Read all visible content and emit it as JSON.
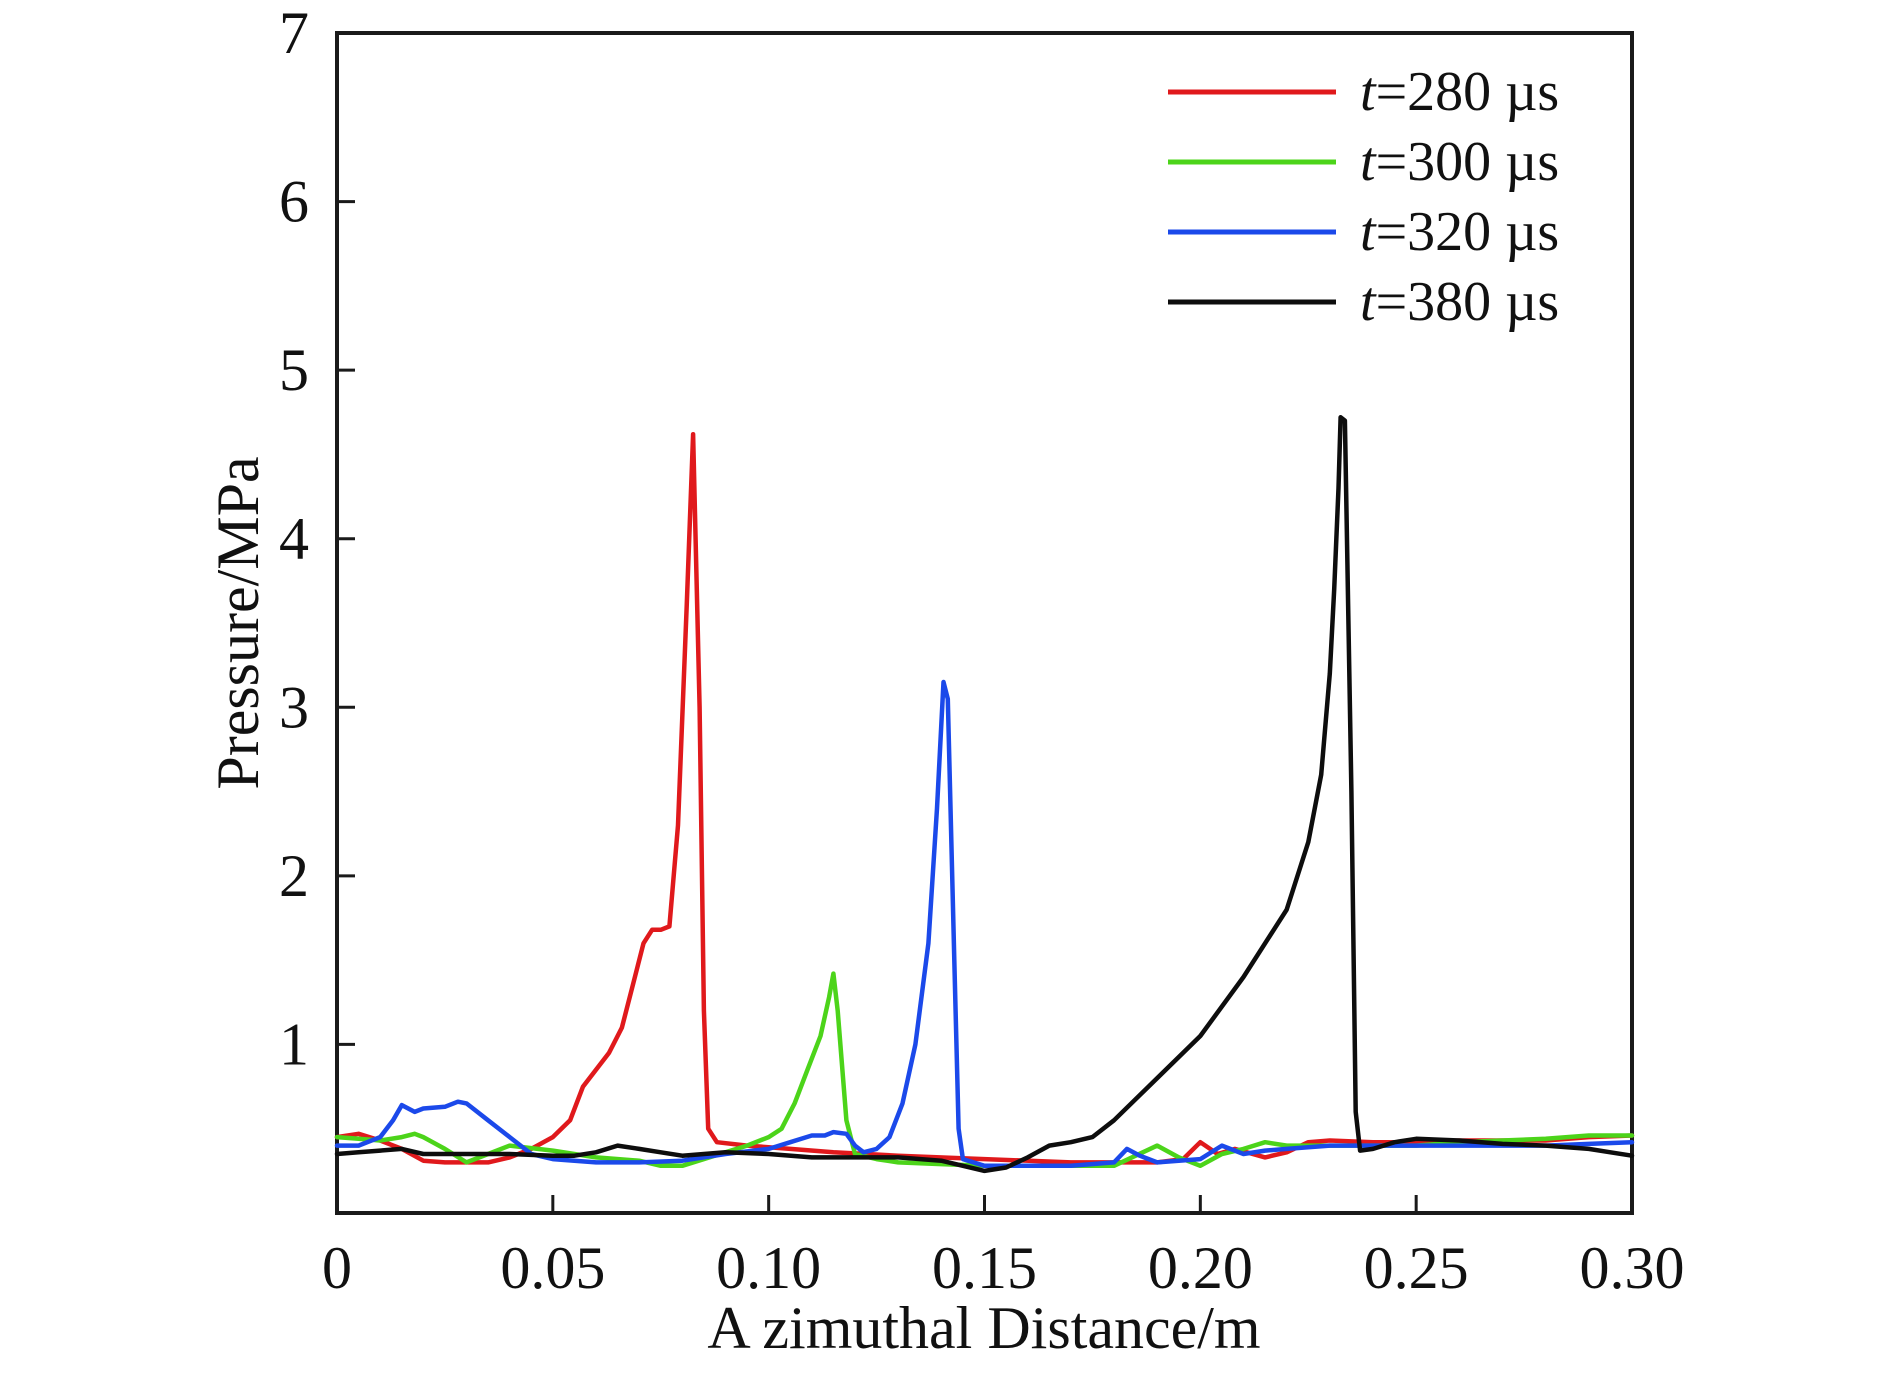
{
  "chart_data": {
    "type": "line",
    "xlabel": "A zimuthal Distance/m",
    "ylabel": "Pressure/MPa",
    "xlim": [
      0,
      0.3
    ],
    "ylim": [
      0,
      7
    ],
    "x_ticks": [
      {
        "value": 0,
        "label": "0"
      },
      {
        "value": 0.05,
        "label": "0.05"
      },
      {
        "value": 0.1,
        "label": "0.10"
      },
      {
        "value": 0.15,
        "label": "0.15"
      },
      {
        "value": 0.2,
        "label": "0.20"
      },
      {
        "value": 0.25,
        "label": "0.25"
      },
      {
        "value": 0.3,
        "label": "0.30"
      }
    ],
    "y_ticks": [
      {
        "value": 1,
        "label": "1"
      },
      {
        "value": 2,
        "label": "2"
      },
      {
        "value": 3,
        "label": "3"
      },
      {
        "value": 4,
        "label": "4"
      },
      {
        "value": 5,
        "label": "5"
      },
      {
        "value": 6,
        "label": "6"
      },
      {
        "value": 7,
        "label": "7"
      }
    ],
    "grid": false,
    "legend_position": "top-right",
    "series": [
      {
        "name": "t=280 µs",
        "name_italic": "t",
        "name_rest": "=280 µs",
        "color": "#e0191c",
        "points": [
          [
            0,
            0.45
          ],
          [
            0.005,
            0.47
          ],
          [
            0.01,
            0.43
          ],
          [
            0.015,
            0.38
          ],
          [
            0.02,
            0.31
          ],
          [
            0.025,
            0.3
          ],
          [
            0.03,
            0.3
          ],
          [
            0.035,
            0.3
          ],
          [
            0.04,
            0.33
          ],
          [
            0.045,
            0.38
          ],
          [
            0.05,
            0.45
          ],
          [
            0.054,
            0.55
          ],
          [
            0.057,
            0.75
          ],
          [
            0.06,
            0.85
          ],
          [
            0.063,
            0.95
          ],
          [
            0.066,
            1.1
          ],
          [
            0.069,
            1.4
          ],
          [
            0.071,
            1.6
          ],
          [
            0.073,
            1.68
          ],
          [
            0.075,
            1.68
          ],
          [
            0.077,
            1.7
          ],
          [
            0.079,
            2.3
          ],
          [
            0.081,
            3.6
          ],
          [
            0.0825,
            4.62
          ],
          [
            0.084,
            3.0
          ],
          [
            0.085,
            1.2
          ],
          [
            0.086,
            0.5
          ],
          [
            0.088,
            0.42
          ],
          [
            0.095,
            0.4
          ],
          [
            0.105,
            0.38
          ],
          [
            0.115,
            0.36
          ],
          [
            0.13,
            0.34
          ],
          [
            0.15,
            0.32
          ],
          [
            0.17,
            0.3
          ],
          [
            0.19,
            0.3
          ],
          [
            0.196,
            0.32
          ],
          [
            0.2,
            0.42
          ],
          [
            0.204,
            0.35
          ],
          [
            0.208,
            0.38
          ],
          [
            0.215,
            0.33
          ],
          [
            0.22,
            0.36
          ],
          [
            0.225,
            0.42
          ],
          [
            0.23,
            0.43
          ],
          [
            0.24,
            0.42
          ],
          [
            0.25,
            0.42
          ],
          [
            0.26,
            0.43
          ],
          [
            0.27,
            0.43
          ],
          [
            0.28,
            0.43
          ],
          [
            0.29,
            0.45
          ],
          [
            0.3,
            0.46
          ]
        ]
      },
      {
        "name": "t=300 µs",
        "name_italic": "t",
        "name_rest": "=300 µs",
        "color": "#4cd41a",
        "points": [
          [
            0,
            0.45
          ],
          [
            0.005,
            0.44
          ],
          [
            0.01,
            0.43
          ],
          [
            0.015,
            0.45
          ],
          [
            0.018,
            0.47
          ],
          [
            0.02,
            0.45
          ],
          [
            0.025,
            0.38
          ],
          [
            0.03,
            0.3
          ],
          [
            0.035,
            0.35
          ],
          [
            0.04,
            0.4
          ],
          [
            0.05,
            0.37
          ],
          [
            0.06,
            0.33
          ],
          [
            0.07,
            0.31
          ],
          [
            0.075,
            0.28
          ],
          [
            0.08,
            0.28
          ],
          [
            0.085,
            0.32
          ],
          [
            0.09,
            0.36
          ],
          [
            0.095,
            0.4
          ],
          [
            0.1,
            0.45
          ],
          [
            0.103,
            0.5
          ],
          [
            0.106,
            0.65
          ],
          [
            0.109,
            0.85
          ],
          [
            0.112,
            1.05
          ],
          [
            0.114,
            1.28
          ],
          [
            0.115,
            1.42
          ],
          [
            0.116,
            1.2
          ],
          [
            0.118,
            0.55
          ],
          [
            0.12,
            0.35
          ],
          [
            0.125,
            0.32
          ],
          [
            0.13,
            0.3
          ],
          [
            0.14,
            0.29
          ],
          [
            0.15,
            0.28
          ],
          [
            0.16,
            0.28
          ],
          [
            0.17,
            0.28
          ],
          [
            0.18,
            0.28
          ],
          [
            0.19,
            0.4
          ],
          [
            0.195,
            0.33
          ],
          [
            0.2,
            0.28
          ],
          [
            0.205,
            0.35
          ],
          [
            0.21,
            0.38
          ],
          [
            0.215,
            0.42
          ],
          [
            0.22,
            0.4
          ],
          [
            0.23,
            0.4
          ],
          [
            0.24,
            0.4
          ],
          [
            0.25,
            0.4
          ],
          [
            0.26,
            0.42
          ],
          [
            0.27,
            0.43
          ],
          [
            0.28,
            0.44
          ],
          [
            0.29,
            0.46
          ],
          [
            0.3,
            0.46
          ]
        ]
      },
      {
        "name": "t=320 µs",
        "name_italic": "t",
        "name_rest": "=320 µs",
        "color": "#1b49ea",
        "points": [
          [
            0,
            0.4
          ],
          [
            0.005,
            0.4
          ],
          [
            0.01,
            0.45
          ],
          [
            0.013,
            0.55
          ],
          [
            0.015,
            0.64
          ],
          [
            0.018,
            0.6
          ],
          [
            0.02,
            0.62
          ],
          [
            0.025,
            0.63
          ],
          [
            0.028,
            0.66
          ],
          [
            0.03,
            0.65
          ],
          [
            0.035,
            0.55
          ],
          [
            0.04,
            0.45
          ],
          [
            0.045,
            0.35
          ],
          [
            0.05,
            0.32
          ],
          [
            0.06,
            0.3
          ],
          [
            0.07,
            0.3
          ],
          [
            0.08,
            0.31
          ],
          [
            0.09,
            0.35
          ],
          [
            0.1,
            0.38
          ],
          [
            0.105,
            0.42
          ],
          [
            0.11,
            0.46
          ],
          [
            0.113,
            0.46
          ],
          [
            0.115,
            0.48
          ],
          [
            0.118,
            0.47
          ],
          [
            0.12,
            0.4
          ],
          [
            0.122,
            0.36
          ],
          [
            0.125,
            0.38
          ],
          [
            0.128,
            0.45
          ],
          [
            0.131,
            0.65
          ],
          [
            0.134,
            1.0
          ],
          [
            0.137,
            1.6
          ],
          [
            0.139,
            2.4
          ],
          [
            0.1405,
            3.15
          ],
          [
            0.1415,
            3.05
          ],
          [
            0.143,
            1.5
          ],
          [
            0.144,
            0.5
          ],
          [
            0.145,
            0.32
          ],
          [
            0.15,
            0.28
          ],
          [
            0.16,
            0.28
          ],
          [
            0.17,
            0.28
          ],
          [
            0.18,
            0.3
          ],
          [
            0.183,
            0.38
          ],
          [
            0.186,
            0.34
          ],
          [
            0.19,
            0.3
          ],
          [
            0.2,
            0.32
          ],
          [
            0.205,
            0.4
          ],
          [
            0.21,
            0.35
          ],
          [
            0.215,
            0.37
          ],
          [
            0.22,
            0.38
          ],
          [
            0.23,
            0.4
          ],
          [
            0.24,
            0.4
          ],
          [
            0.25,
            0.4
          ],
          [
            0.26,
            0.4
          ],
          [
            0.27,
            0.4
          ],
          [
            0.28,
            0.4
          ],
          [
            0.29,
            0.41
          ],
          [
            0.3,
            0.42
          ]
        ]
      },
      {
        "name": "t=380 µs",
        "name_italic": "t",
        "name_rest": "=380 µs",
        "color": "#0d0d0d",
        "points": [
          [
            0,
            0.35
          ],
          [
            0.005,
            0.36
          ],
          [
            0.01,
            0.37
          ],
          [
            0.015,
            0.38
          ],
          [
            0.02,
            0.35
          ],
          [
            0.03,
            0.35
          ],
          [
            0.04,
            0.35
          ],
          [
            0.05,
            0.34
          ],
          [
            0.055,
            0.34
          ],
          [
            0.06,
            0.36
          ],
          [
            0.065,
            0.4
          ],
          [
            0.07,
            0.38
          ],
          [
            0.075,
            0.36
          ],
          [
            0.08,
            0.34
          ],
          [
            0.09,
            0.36
          ],
          [
            0.1,
            0.35
          ],
          [
            0.11,
            0.33
          ],
          [
            0.12,
            0.33
          ],
          [
            0.13,
            0.33
          ],
          [
            0.14,
            0.31
          ],
          [
            0.145,
            0.28
          ],
          [
            0.15,
            0.25
          ],
          [
            0.155,
            0.27
          ],
          [
            0.16,
            0.33
          ],
          [
            0.165,
            0.4
          ],
          [
            0.17,
            0.42
          ],
          [
            0.175,
            0.45
          ],
          [
            0.18,
            0.55
          ],
          [
            0.19,
            0.8
          ],
          [
            0.2,
            1.05
          ],
          [
            0.21,
            1.4
          ],
          [
            0.22,
            1.8
          ],
          [
            0.225,
            2.2
          ],
          [
            0.228,
            2.6
          ],
          [
            0.23,
            3.2
          ],
          [
            0.231,
            3.7
          ],
          [
            0.232,
            4.3
          ],
          [
            0.2325,
            4.72
          ],
          [
            0.2335,
            4.7
          ],
          [
            0.235,
            2.5
          ],
          [
            0.236,
            0.6
          ],
          [
            0.237,
            0.37
          ],
          [
            0.24,
            0.38
          ],
          [
            0.245,
            0.42
          ],
          [
            0.25,
            0.44
          ],
          [
            0.26,
            0.43
          ],
          [
            0.27,
            0.41
          ],
          [
            0.28,
            0.4
          ],
          [
            0.29,
            0.38
          ],
          [
            0.295,
            0.36
          ],
          [
            0.3,
            0.34
          ]
        ]
      }
    ]
  }
}
